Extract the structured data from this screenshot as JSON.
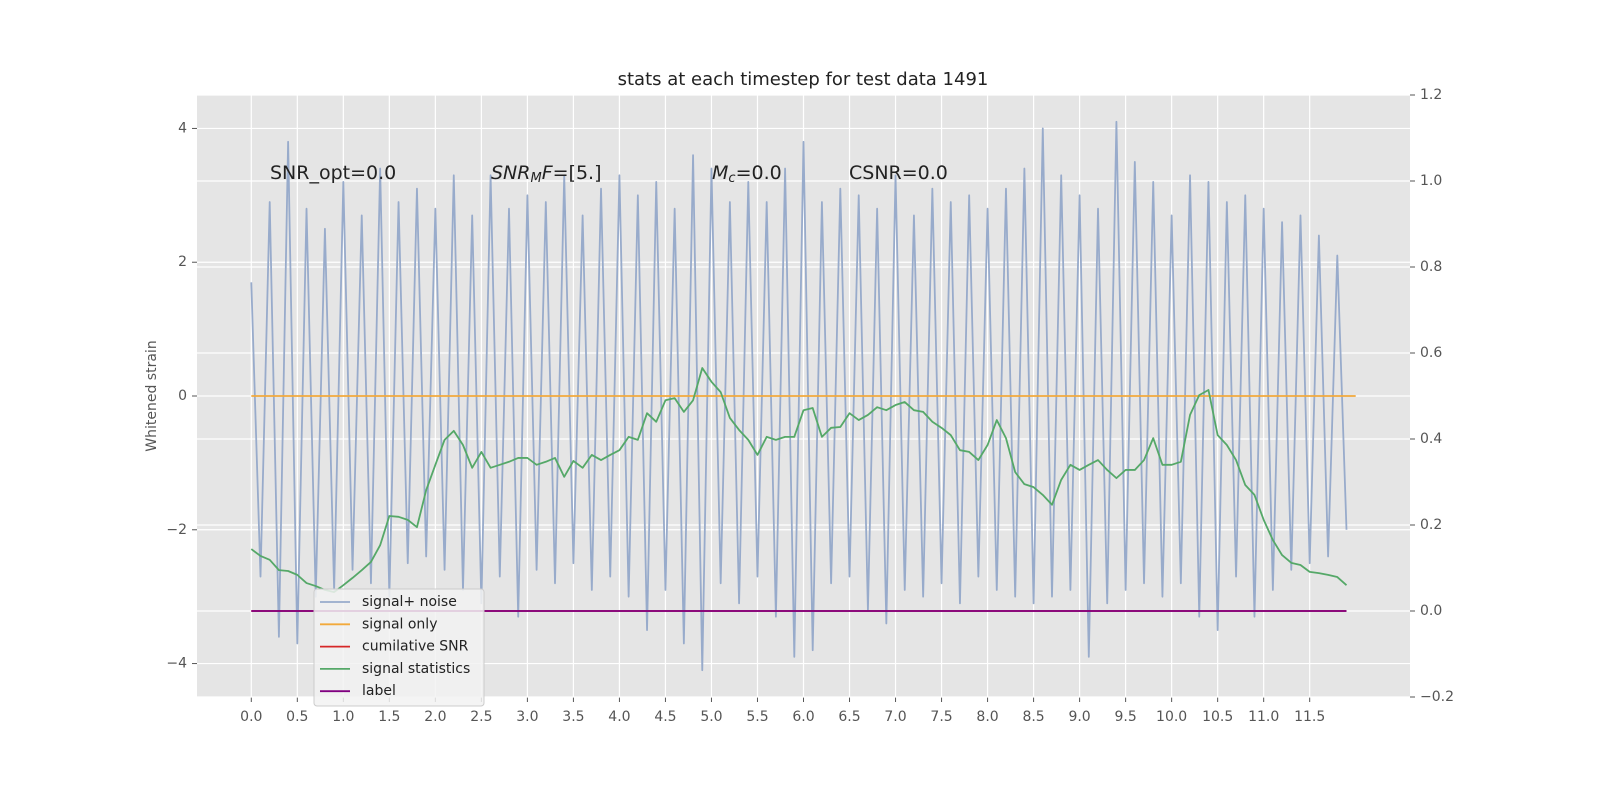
{
  "chart_data": {
    "type": "line",
    "title": "stats at each timestep for test data 1491",
    "ylabel": "Whitened strain",
    "background": "#e5e5e5",
    "grid": true,
    "xlim": [
      -0.59,
      12.59
    ],
    "ylim": [
      -4.5,
      4.5
    ],
    "y2lim": [
      -0.2,
      1.2
    ],
    "xticks": [
      {
        "value": 0,
        "label": "0.0"
      },
      {
        "value": 0.5,
        "label": "0.5"
      },
      {
        "value": 1,
        "label": "1.0"
      },
      {
        "value": 1.5,
        "label": "1.5"
      },
      {
        "value": 2,
        "label": "2.0"
      },
      {
        "value": 2.5,
        "label": "2.5"
      },
      {
        "value": 3,
        "label": "3.0"
      },
      {
        "value": 3.5,
        "label": "3.5"
      },
      {
        "value": 4,
        "label": "4.0"
      },
      {
        "value": 4.5,
        "label": "4.5"
      },
      {
        "value": 5,
        "label": "5.0"
      },
      {
        "value": 5.5,
        "label": "5.5"
      },
      {
        "value": 6,
        "label": "6.0"
      },
      {
        "value": 6.5,
        "label": "6.5"
      },
      {
        "value": 7,
        "label": "7.0"
      },
      {
        "value": 7.5,
        "label": "7.5"
      },
      {
        "value": 8,
        "label": "8.0"
      },
      {
        "value": 8.5,
        "label": "8.5"
      },
      {
        "value": 9,
        "label": "9.0"
      },
      {
        "value": 9.5,
        "label": "9.5"
      },
      {
        "value": 10,
        "label": "10.0"
      },
      {
        "value": 10.5,
        "label": "10.5"
      },
      {
        "value": 11,
        "label": "11.0"
      },
      {
        "value": 11.5,
        "label": "11.5"
      }
    ],
    "yticks": [
      {
        "value": -4,
        "label": "−4"
      },
      {
        "value": -2,
        "label": "−2"
      },
      0,
      2,
      4
    ],
    "y2ticks": [
      {
        "value": -0.2,
        "label": "−0.2"
      },
      {
        "value": 0,
        "label": "0.0"
      },
      0.2,
      0.4,
      0.6,
      0.8,
      {
        "value": 1,
        "label": "1.0"
      },
      1.2
    ],
    "x": [
      0,
      0.1,
      0.2,
      0.3,
      0.4,
      0.5,
      0.6,
      0.7,
      0.8,
      0.9,
      1,
      1.1,
      1.2,
      1.3,
      1.4,
      1.5,
      1.6,
      1.7,
      1.8,
      1.9,
      2,
      2.1,
      2.2,
      2.3,
      2.4,
      2.5,
      2.6,
      2.7,
      2.8,
      2.9,
      3,
      3.1,
      3.2,
      3.3,
      3.4,
      3.5,
      3.6,
      3.7,
      3.8,
      3.9,
      4,
      4.1,
      4.2,
      4.3,
      4.4,
      4.5,
      4.6,
      4.7,
      4.8,
      4.9,
      5,
      5.1,
      5.2,
      5.3,
      5.4,
      5.5,
      5.6,
      5.7,
      5.8,
      5.9,
      6,
      6.1,
      6.2,
      6.3,
      6.4,
      6.5,
      6.6,
      6.7,
      6.8,
      6.9,
      7,
      7.1,
      7.2,
      7.3,
      7.4,
      7.5,
      7.6,
      7.7,
      7.8,
      7.9,
      8,
      8.1,
      8.2,
      8.3,
      8.4,
      8.5,
      8.6,
      8.7,
      8.8,
      8.9,
      9,
      9.1,
      9.2,
      9.3,
      9.4,
      9.5,
      9.6,
      9.7,
      9.8,
      9.9,
      10,
      10.1,
      10.2,
      10.3,
      10.4,
      10.5,
      10.6,
      10.7,
      10.8,
      10.9,
      11,
      11.1,
      11.2,
      11.3,
      11.4,
      11.5,
      11.6,
      11.7,
      11.8,
      11.9
    ],
    "series": [
      {
        "name": "signal+ noise",
        "color": "#98abcb",
        "values": [
          1.7,
          -2.7,
          2.9,
          -3.6,
          3.8,
          -3.7,
          2.8,
          -3.0,
          2.5,
          -2.9,
          3.2,
          -2.6,
          2.7,
          -2.8,
          3.4,
          -3.0,
          2.9,
          -2.5,
          3.1,
          -2.4,
          2.8,
          -2.6,
          3.3,
          -2.9,
          2.7,
          -3.1,
          3.3,
          -2.7,
          2.8,
          -3.3,
          3.0,
          -2.6,
          2.9,
          -2.8,
          3.3,
          -2.5,
          2.7,
          -2.9,
          3.1,
          -2.7,
          3.3,
          -3.0,
          3.0,
          -3.5,
          3.2,
          -2.9,
          2.8,
          -3.7,
          3.6,
          -4.1,
          3.4,
          -2.8,
          2.9,
          -3.1,
          3.2,
          -2.7,
          2.9,
          -3.3,
          3.4,
          -3.9,
          3.8,
          -3.8,
          2.9,
          -2.8,
          3.1,
          -2.7,
          3.0,
          -3.2,
          2.8,
          -3.4,
          3.3,
          -2.9,
          2.7,
          -3.0,
          3.1,
          -2.8,
          2.9,
          -3.1,
          3.0,
          -2.7,
          2.8,
          -2.9,
          3.1,
          -3.0,
          3.4,
          -3.1,
          4.0,
          -3.0,
          3.3,
          -2.9,
          3.0,
          -3.9,
          2.8,
          -3.1,
          4.1,
          -2.9,
          3.5,
          -2.8,
          3.2,
          -3.0,
          2.7,
          -2.8,
          3.3,
          -3.3,
          3.2,
          -3.5,
          2.9,
          -2.7,
          3.0,
          -3.3,
          2.8,
          -2.9,
          2.6,
          -2.6,
          2.7,
          -2.5,
          2.4,
          -2.4,
          2.1,
          -2.0
        ]
      },
      {
        "name": "signal only",
        "color": "#f2a93b",
        "x": [
          0,
          12.0
        ],
        "values": [
          0,
          0
        ]
      },
      {
        "name": "cumilative SNR",
        "color": "#d62728",
        "axis": "y2",
        "x": [
          0,
          11.9
        ],
        "values": [
          0,
          0
        ]
      },
      {
        "name": "signal statistics",
        "color": "#55a868",
        "axis": "y2",
        "values": [
          0.144,
          0.128,
          0.119,
          0.095,
          0.093,
          0.084,
          0.065,
          0.058,
          0.049,
          0.044,
          0.06,
          0.077,
          0.095,
          0.114,
          0.153,
          0.221,
          0.219,
          0.212,
          0.195,
          0.281,
          0.34,
          0.398,
          0.419,
          0.386,
          0.333,
          0.37,
          0.333,
          0.34,
          0.347,
          0.356,
          0.356,
          0.34,
          0.347,
          0.356,
          0.312,
          0.349,
          0.333,
          0.363,
          0.351,
          0.363,
          0.374,
          0.405,
          0.398,
          0.46,
          0.44,
          0.49,
          0.495,
          0.463,
          0.49,
          0.565,
          0.533,
          0.509,
          0.449,
          0.421,
          0.398,
          0.363,
          0.405,
          0.398,
          0.405,
          0.405,
          0.467,
          0.472,
          0.405,
          0.426,
          0.428,
          0.46,
          0.444,
          0.456,
          0.474,
          0.467,
          0.479,
          0.486,
          0.467,
          0.463,
          0.44,
          0.426,
          0.409,
          0.374,
          0.37,
          0.351,
          0.386,
          0.444,
          0.402,
          0.323,
          0.295,
          0.288,
          0.27,
          0.247,
          0.305,
          0.34,
          0.328,
          0.34,
          0.351,
          0.328,
          0.309,
          0.328,
          0.328,
          0.351,
          0.402,
          0.34,
          0.34,
          0.347,
          0.456,
          0.502,
          0.514,
          0.409,
          0.386,
          0.351,
          0.293,
          0.27,
          0.212,
          0.165,
          0.13,
          0.112,
          0.107,
          0.091,
          0.088,
          0.084,
          0.079,
          0.06
        ]
      },
      {
        "name": "label",
        "color": "#800080",
        "axis": "y2",
        "x": [
          0,
          11.9
        ],
        "values": [
          0,
          0
        ]
      }
    ],
    "annotations": [
      {
        "parts": [
          {
            "text": "SNR_opt=0.0"
          }
        ]
      },
      {
        "parts": [
          {
            "text": "SNR",
            "italic": true
          },
          {
            "text": "M",
            "italic": true,
            "sub": true
          },
          {
            "text": "F",
            "italic": true
          },
          {
            "text": "=[5.]"
          }
        ]
      },
      {
        "parts": [
          {
            "text": "M",
            "italic": true
          },
          {
            "text": "c",
            "italic": true,
            "sub": true
          },
          {
            "text": "=0.0"
          }
        ]
      },
      {
        "parts": [
          {
            "text": "CSNR=0.0"
          }
        ]
      }
    ]
  }
}
